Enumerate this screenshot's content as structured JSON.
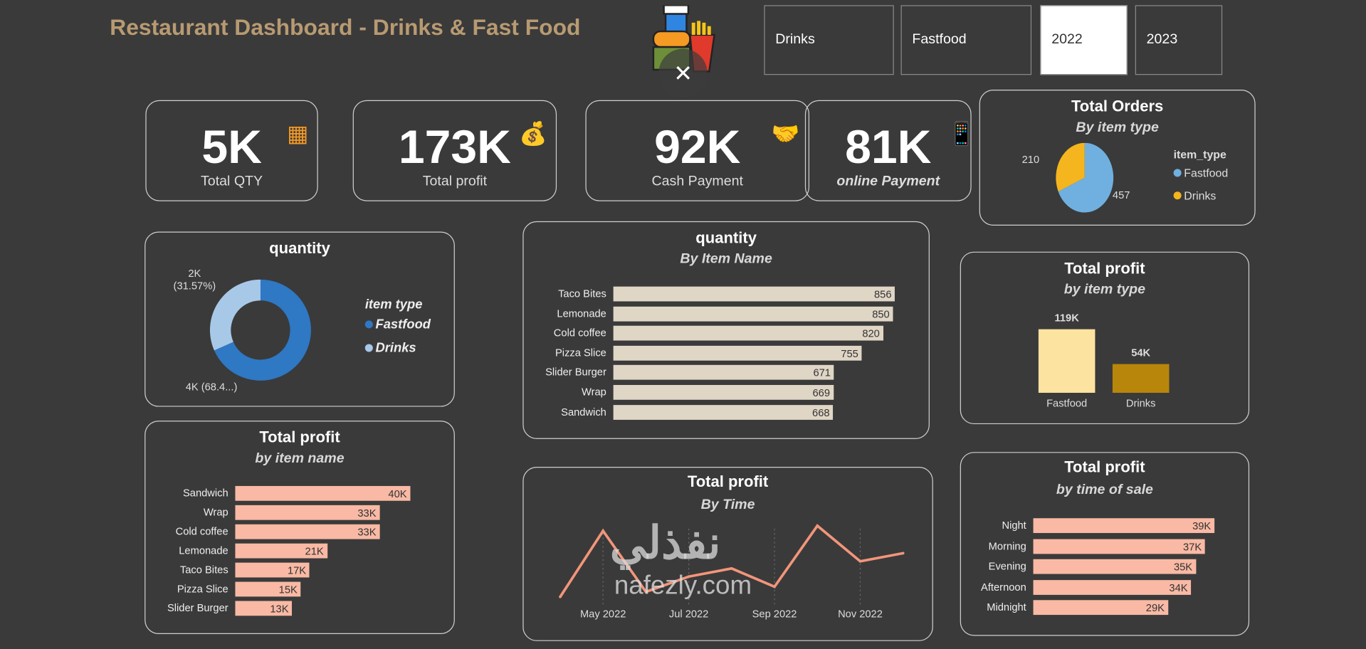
{
  "header": {
    "title": "Restaurant Dashboard - Drinks & Fast Food",
    "close_icon": "close-icon",
    "logo_icon": "fast-food-icon"
  },
  "slicers": [
    {
      "label": "Drinks",
      "selected": false
    },
    {
      "label": "Fastfood",
      "selected": false
    },
    {
      "label": "2022",
      "selected": true
    },
    {
      "label": "2023",
      "selected": false
    }
  ],
  "kpis": [
    {
      "value": "5K",
      "label": "Total QTY",
      "icon": "boxes-icon"
    },
    {
      "value": "173K",
      "label": "Total profit",
      "icon": "money-bag-icon"
    },
    {
      "value": "92K",
      "label": "Cash Payment",
      "icon": "cash-hand-icon"
    },
    {
      "value": "81K",
      "label": "online Payment",
      "icon": "mobile-pay-icon"
    }
  ],
  "orders_pie": {
    "title": "Total Orders",
    "subtitle": "By item type",
    "legend_title": "item_type",
    "slices": [
      {
        "name": "Fastfood",
        "value": 457,
        "label": "457",
        "color": "#6fb0e0"
      },
      {
        "name": "Drinks",
        "value": 210,
        "label": "210",
        "color": "#f5b51e"
      }
    ]
  },
  "qty_donut": {
    "title": "quantity",
    "legend_title": "item type",
    "slices": [
      {
        "name": "Fastfood",
        "label": "4K (68.4...)",
        "value": 68.43,
        "color": "#2e78c4"
      },
      {
        "name": "Drinks",
        "label": "2K",
        "pct": "(31.57%)",
        "value": 31.57,
        "color": "#a8c8e8"
      }
    ]
  },
  "qty_by_name": {
    "title": "quantity",
    "subtitle": "By Item Name",
    "max": 900,
    "color": "#e0d6c6",
    "items": [
      {
        "name": "Taco Bites",
        "value": 856,
        "label": "856"
      },
      {
        "name": "Lemonade",
        "value": 850,
        "label": "850"
      },
      {
        "name": "Cold coffee",
        "value": 820,
        "label": "820"
      },
      {
        "name": "Pizza Slice",
        "value": 755,
        "label": "755"
      },
      {
        "name": "Slider Burger",
        "value": 671,
        "label": "671"
      },
      {
        "name": "Wrap",
        "value": 669,
        "label": "669"
      },
      {
        "name": "Sandwich",
        "value": 668,
        "label": "668"
      }
    ]
  },
  "profit_by_type": {
    "title": "Total profit",
    "subtitle": "by item type",
    "max": 119,
    "items": [
      {
        "name": "Fastfood",
        "value": 119,
        "label": "119K",
        "color": "#fde3a0"
      },
      {
        "name": "Drinks",
        "value": 54,
        "label": "54K",
        "color": "#b8860b"
      }
    ]
  },
  "profit_by_name": {
    "title": "Total profit",
    "subtitle": "by item name",
    "max": 40,
    "color": "#f9b9a4",
    "items": [
      {
        "name": "Sandwich",
        "value": 40,
        "label": "40K"
      },
      {
        "name": "Wrap",
        "value": 33,
        "label": "33K"
      },
      {
        "name": "Cold coffee",
        "value": 33,
        "label": "33K"
      },
      {
        "name": "Lemonade",
        "value": 21,
        "label": "21K"
      },
      {
        "name": "Taco Bites",
        "value": 17,
        "label": "17K"
      },
      {
        "name": "Pizza Slice",
        "value": 15,
        "label": "15K"
      },
      {
        "name": "Slider Burger",
        "value": 13,
        "label": "13K"
      }
    ]
  },
  "profit_by_time": {
    "title": "Total profit",
    "subtitle": "By Time",
    "color": "#f2957a",
    "ticks": [
      "May 2022",
      "Jul 2022",
      "Sep 2022",
      "Nov 2022"
    ],
    "x": [
      "Apr 2022",
      "May 2022",
      "Jun 2022",
      "Jul 2022",
      "Aug 2022",
      "Sep 2022",
      "Oct 2022",
      "Nov 2022",
      "Dec 2022"
    ],
    "values": [
      11,
      17.5,
      11.5,
      13,
      13.8,
      12,
      18,
      14.5,
      15.3
    ]
  },
  "profit_by_time_of_sale": {
    "title": "Total profit",
    "subtitle": "by time of sale",
    "max": 39,
    "color": "#f9b9a4",
    "items": [
      {
        "name": "Night",
        "value": 39,
        "label": "39K"
      },
      {
        "name": "Morning",
        "value": 37,
        "label": "37K"
      },
      {
        "name": "Evening",
        "value": 35,
        "label": "35K"
      },
      {
        "name": "Afternoon",
        "value": 34,
        "label": "34K"
      },
      {
        "name": "Midnight",
        "value": 29,
        "label": "29K"
      }
    ]
  },
  "watermark": {
    "arabic": "نفذلي",
    "latin": "nafezly.com"
  }
}
